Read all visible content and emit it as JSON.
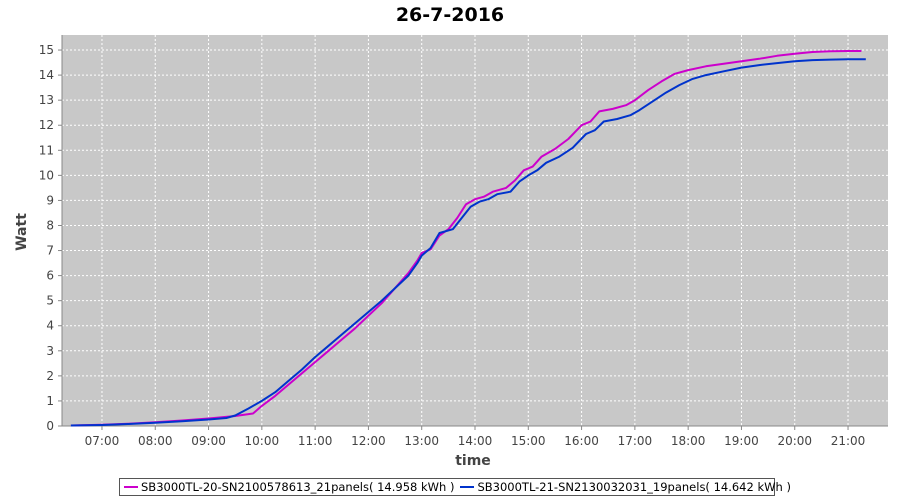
{
  "chart_data": {
    "type": "line",
    "title": "26-7-2016",
    "xlabel": "time",
    "ylabel": "Watt",
    "x_ticks": [
      "07:00",
      "08:00",
      "09:00",
      "10:00",
      "11:00",
      "12:00",
      "13:00",
      "14:00",
      "15:00",
      "16:00",
      "17:00",
      "18:00",
      "19:00",
      "20:00",
      "21:00"
    ],
    "y_ticks": [
      0,
      1,
      2,
      3,
      4,
      5,
      6,
      7,
      8,
      9,
      10,
      11,
      12,
      13,
      14,
      15
    ],
    "xlim": [
      "06:15",
      "21:45"
    ],
    "ylim": [
      0,
      15.6
    ],
    "grid": true,
    "legend_position": "bottom",
    "series": [
      {
        "name": "SB3000TL-20-SN2100578613_21panels( 14.958 kWh )",
        "color": "#cc00cc",
        "points": [
          [
            "06:25",
            0.02
          ],
          [
            "07:00",
            0.05
          ],
          [
            "07:30",
            0.09
          ],
          [
            "08:00",
            0.15
          ],
          [
            "08:30",
            0.22
          ],
          [
            "09:00",
            0.3
          ],
          [
            "09:30",
            0.4
          ],
          [
            "09:50",
            0.5
          ],
          [
            "10:00",
            0.8
          ],
          [
            "10:15",
            1.2
          ],
          [
            "10:30",
            1.65
          ],
          [
            "10:45",
            2.1
          ],
          [
            "11:00",
            2.55
          ],
          [
            "11:15",
            3.0
          ],
          [
            "11:30",
            3.45
          ],
          [
            "11:45",
            3.9
          ],
          [
            "12:00",
            4.4
          ],
          [
            "12:15",
            4.9
          ],
          [
            "12:30",
            5.5
          ],
          [
            "12:45",
            6.1
          ],
          [
            "12:55",
            6.6
          ],
          [
            "13:00",
            6.9
          ],
          [
            "13:10",
            7.05
          ],
          [
            "13:20",
            7.6
          ],
          [
            "13:30",
            7.85
          ],
          [
            "13:40",
            8.3
          ],
          [
            "13:50",
            8.85
          ],
          [
            "14:00",
            9.05
          ],
          [
            "14:10",
            9.15
          ],
          [
            "14:20",
            9.35
          ],
          [
            "14:35",
            9.5
          ],
          [
            "14:45",
            9.8
          ],
          [
            "14:55",
            10.2
          ],
          [
            "15:05",
            10.35
          ],
          [
            "15:15",
            10.75
          ],
          [
            "15:30",
            11.05
          ],
          [
            "15:45",
            11.45
          ],
          [
            "16:00",
            12.0
          ],
          [
            "16:10",
            12.15
          ],
          [
            "16:20",
            12.55
          ],
          [
            "16:35",
            12.65
          ],
          [
            "16:50",
            12.8
          ],
          [
            "17:00",
            13.0
          ],
          [
            "17:15",
            13.4
          ],
          [
            "17:30",
            13.75
          ],
          [
            "17:45",
            14.05
          ],
          [
            "18:00",
            14.2
          ],
          [
            "18:20",
            14.35
          ],
          [
            "18:40",
            14.45
          ],
          [
            "19:00",
            14.55
          ],
          [
            "19:20",
            14.65
          ],
          [
            "19:40",
            14.77
          ],
          [
            "20:00",
            14.85
          ],
          [
            "20:20",
            14.92
          ],
          [
            "20:40",
            14.95
          ],
          [
            "21:00",
            14.96
          ],
          [
            "21:15",
            14.96
          ]
        ]
      },
      {
        "name": "SB3000TL-21-SN2130032031_19panels( 14.642 kWh )",
        "color": "#0033cc",
        "points": [
          [
            "06:25",
            0.02
          ],
          [
            "07:00",
            0.04
          ],
          [
            "07:30",
            0.08
          ],
          [
            "08:00",
            0.13
          ],
          [
            "08:30",
            0.19
          ],
          [
            "09:00",
            0.26
          ],
          [
            "09:20",
            0.32
          ],
          [
            "09:30",
            0.42
          ],
          [
            "09:45",
            0.7
          ],
          [
            "10:00",
            1.0
          ],
          [
            "10:15",
            1.35
          ],
          [
            "10:30",
            1.8
          ],
          [
            "10:45",
            2.25
          ],
          [
            "11:00",
            2.75
          ],
          [
            "11:15",
            3.2
          ],
          [
            "11:30",
            3.65
          ],
          [
            "11:45",
            4.1
          ],
          [
            "12:00",
            4.55
          ],
          [
            "12:15",
            5.0
          ],
          [
            "12:30",
            5.5
          ],
          [
            "12:45",
            6.0
          ],
          [
            "12:55",
            6.5
          ],
          [
            "13:00",
            6.8
          ],
          [
            "13:10",
            7.1
          ],
          [
            "13:20",
            7.7
          ],
          [
            "13:35",
            7.85
          ],
          [
            "13:45",
            8.3
          ],
          [
            "13:55",
            8.75
          ],
          [
            "14:05",
            8.95
          ],
          [
            "14:15",
            9.05
          ],
          [
            "14:25",
            9.25
          ],
          [
            "14:40",
            9.35
          ],
          [
            "14:50",
            9.75
          ],
          [
            "15:00",
            10.0
          ],
          [
            "15:10",
            10.2
          ],
          [
            "15:20",
            10.5
          ],
          [
            "15:35",
            10.75
          ],
          [
            "15:50",
            11.1
          ],
          [
            "16:05",
            11.65
          ],
          [
            "16:15",
            11.8
          ],
          [
            "16:25",
            12.15
          ],
          [
            "16:40",
            12.25
          ],
          [
            "16:55",
            12.4
          ],
          [
            "17:05",
            12.6
          ],
          [
            "17:20",
            12.95
          ],
          [
            "17:35",
            13.3
          ],
          [
            "17:50",
            13.6
          ],
          [
            "18:05",
            13.85
          ],
          [
            "18:20",
            14.0
          ],
          [
            "18:40",
            14.15
          ],
          [
            "19:00",
            14.3
          ],
          [
            "19:20",
            14.4
          ],
          [
            "19:40",
            14.48
          ],
          [
            "20:00",
            14.55
          ],
          [
            "20:20",
            14.6
          ],
          [
            "20:40",
            14.62
          ],
          [
            "21:00",
            14.63
          ],
          [
            "21:20",
            14.63
          ]
        ]
      }
    ]
  }
}
